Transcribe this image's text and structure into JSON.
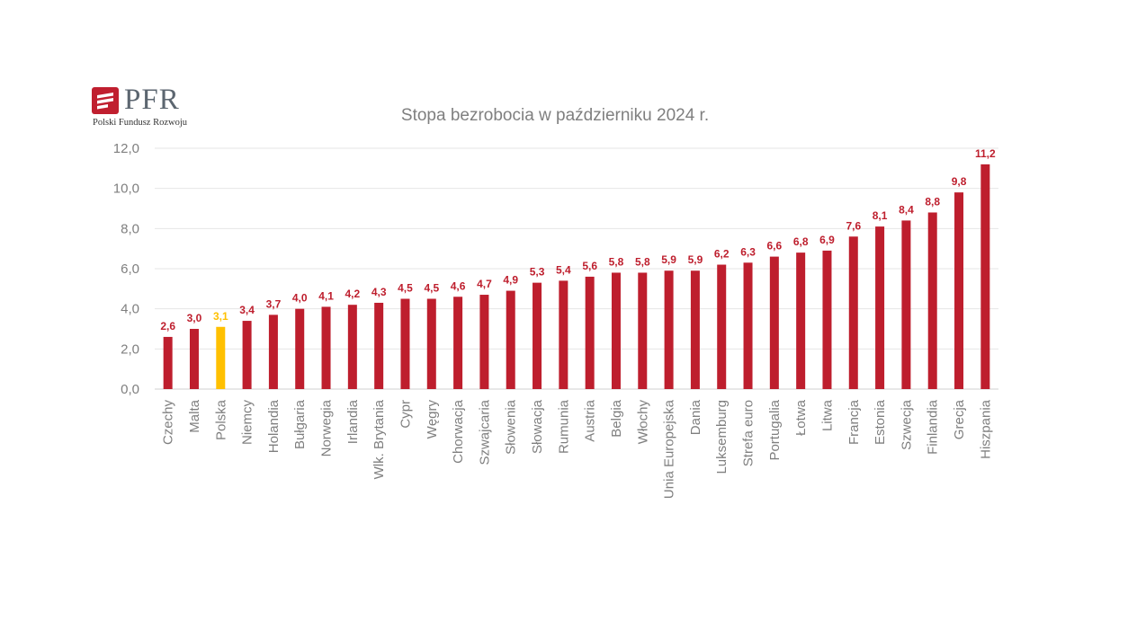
{
  "logo": {
    "wordmark": "PFR",
    "subtitle": "Polski Fundusz Rozwoju",
    "colors": {
      "mark": "#c01f2f",
      "text": "#5c6670"
    }
  },
  "chart_data": {
    "type": "bar",
    "title": "Stopa bezrobocia w październiku 2024 r.",
    "xlabel": "",
    "ylabel": "",
    "ylim": [
      0,
      12
    ],
    "yticks": [
      "0,0",
      "2,0",
      "4,0",
      "6,0",
      "8,0",
      "10,0",
      "12,0"
    ],
    "grid": true,
    "legend": "none",
    "categories": [
      "Czechy",
      "Malta",
      "Polska",
      "Niemcy",
      "Holandia",
      "Bułgaria",
      "Norwegia",
      "Irlandia",
      "Wlk. Brytania",
      "Cypr",
      "Węgry",
      "Chorwacja",
      "Szwajcaria",
      "Słowenia",
      "Słowacja",
      "Rumunia",
      "Austria",
      "Belgia",
      "Włochy",
      "Unia Europejska",
      "Dania",
      "Luksemburg",
      "Strefa euro",
      "Portugalia",
      "Łotwa",
      "Litwa",
      "Francja",
      "Estonia",
      "Szwecja",
      "Finlandia",
      "Grecja",
      "Hiszpania"
    ],
    "values": [
      2.6,
      3.0,
      3.1,
      3.4,
      3.7,
      4.0,
      4.1,
      4.2,
      4.3,
      4.5,
      4.5,
      4.6,
      4.7,
      4.9,
      5.3,
      5.4,
      5.6,
      5.8,
      5.8,
      5.9,
      5.9,
      6.2,
      6.3,
      6.6,
      6.8,
      6.9,
      7.6,
      8.1,
      8.4,
      8.8,
      9.8,
      11.2
    ],
    "value_labels": [
      "2,6",
      "3,0",
      "3,1",
      "3,4",
      "3,7",
      "4,0",
      "4,1",
      "4,2",
      "4,3",
      "4,5",
      "4,5",
      "4,6",
      "4,7",
      "4,9",
      "5,3",
      "5,4",
      "5,6",
      "5,8",
      "5,8",
      "5,9",
      "5,9",
      "6,2",
      "6,3",
      "6,6",
      "6,8",
      "6,9",
      "7,6",
      "8,1",
      "8,4",
      "8,8",
      "9,8",
      "11,2"
    ],
    "highlight": "Polska",
    "colors": {
      "bar": "#be1e2d",
      "highlight": "#ffc000",
      "grid": "#e6e6e6",
      "tick_text": "#7f7f7f"
    }
  }
}
